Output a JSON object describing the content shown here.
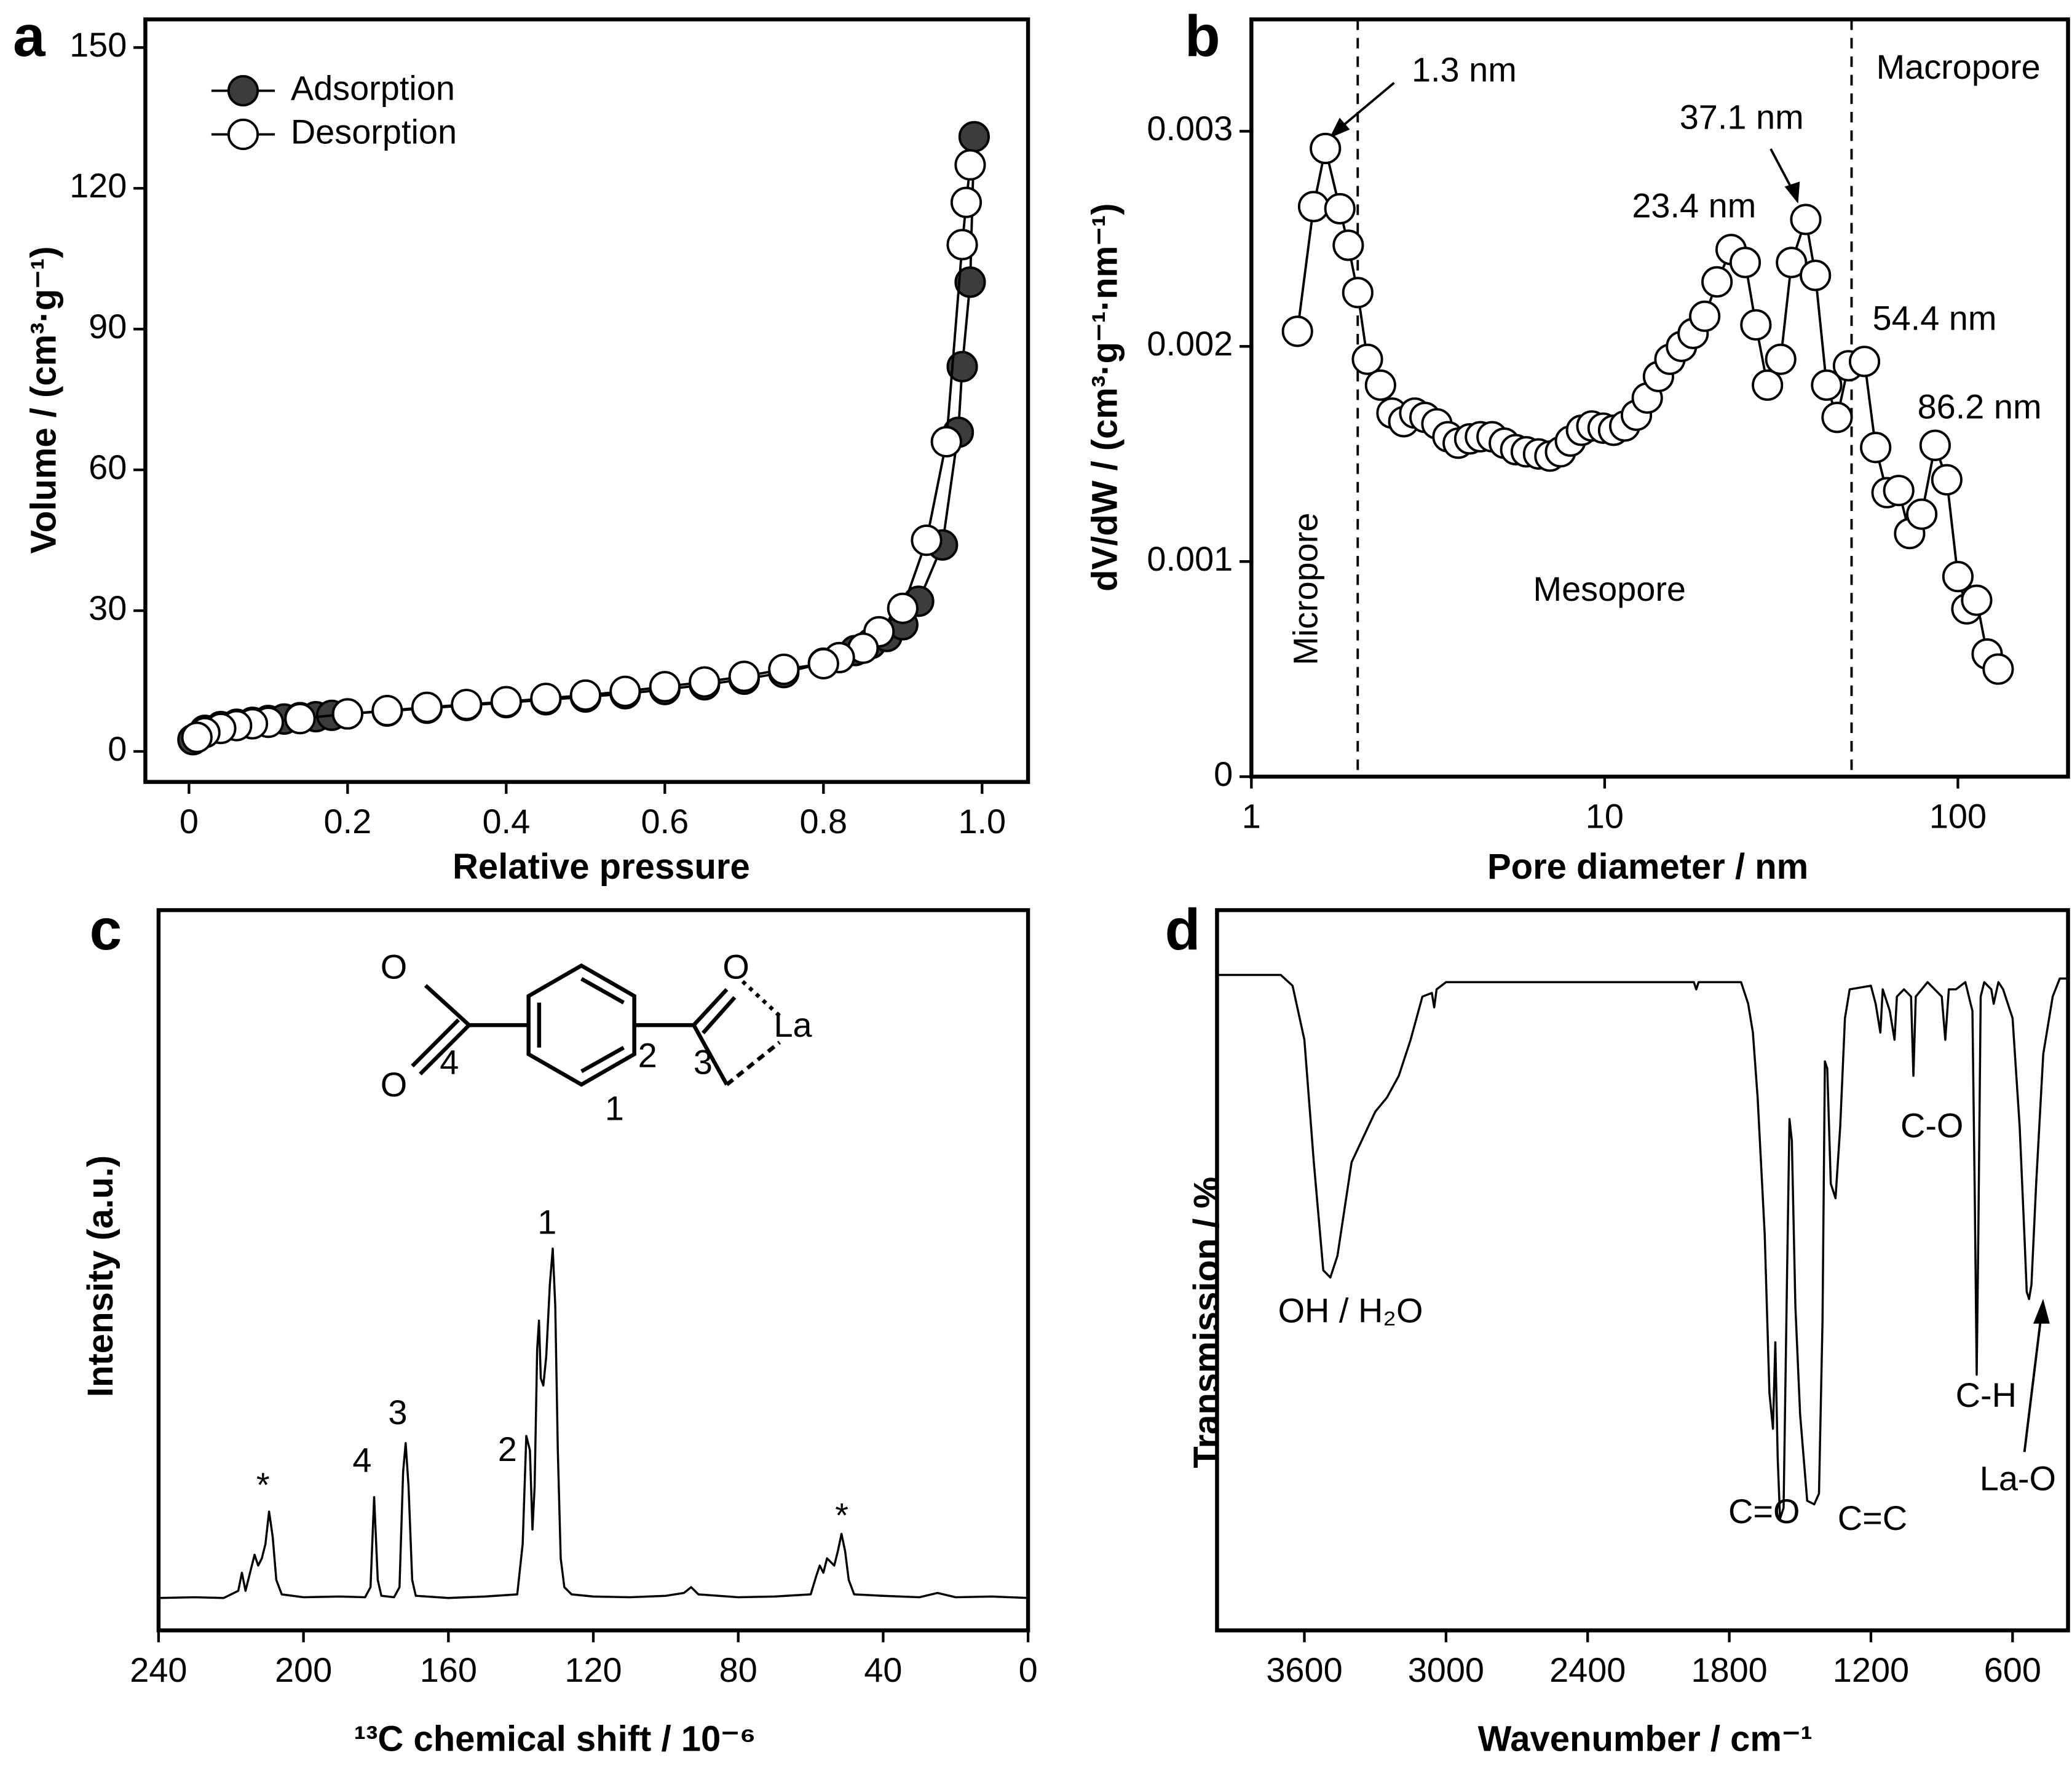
{
  "chart_data": [
    {
      "type": "line",
      "label": "a",
      "xlabel": "Relative pressure",
      "ylabel": "Volume / (cm³·g⁻¹)",
      "xlim": [
        -0.055,
        1.058
      ],
      "ylim": [
        -6.5,
        156
      ],
      "xticks": [
        0,
        0.2,
        0.4,
        0.6,
        0.8,
        {
          "value": 1,
          "label": "1.0"
        }
      ],
      "yticks": [
        0,
        30,
        60,
        90,
        120,
        150
      ],
      "legend": "upper left",
      "marker": "circle",
      "series": [
        {
          "name": "Adsorption",
          "color": "#000000",
          "marker_fill": "#3c3c3c",
          "x": [
            0.005,
            0.02,
            0.04,
            0.06,
            0.08,
            0.1,
            0.12,
            0.14,
            0.16,
            0.18,
            0.2,
            0.25,
            0.3,
            0.35,
            0.4,
            0.45,
            0.5,
            0.55,
            0.6,
            0.65,
            0.7,
            0.75,
            0.8,
            0.82,
            0.84,
            0.86,
            0.88,
            0.9,
            0.92,
            0.95,
            0.97,
            0.975,
            0.985,
            0.99
          ],
          "values": [
            2.5,
            4.5,
            5.3,
            5.8,
            6.2,
            6.6,
            6.9,
            7.2,
            7.4,
            7.7,
            8,
            8.6,
            9.2,
            9.8,
            10.4,
            11,
            11.6,
            12.3,
            13.2,
            14.2,
            15.4,
            16.8,
            18.8,
            20,
            21.5,
            23,
            24.5,
            27,
            32,
            44,
            68,
            82,
            100,
            131
          ]
        },
        {
          "name": "Desorption",
          "color": "#000000",
          "marker_fill": "#ffffff",
          "x": [
            0.985,
            0.98,
            0.975,
            0.955,
            0.93,
            0.9,
            0.87,
            0.85,
            0.82,
            0.8,
            0.75,
            0.7,
            0.65,
            0.6,
            0.55,
            0.5,
            0.45,
            0.4,
            0.35,
            0.3,
            0.25,
            0.2,
            0.14,
            0.1,
            0.08,
            0.06,
            0.04,
            0.02,
            0.01
          ],
          "values": [
            125,
            117,
            108,
            66,
            45,
            30.5,
            25.5,
            22,
            20,
            18.7,
            17.5,
            16,
            14.8,
            13.8,
            12.8,
            12,
            11.3,
            10.6,
            10,
            9.4,
            8.7,
            8,
            7,
            6.2,
            5.9,
            5.5,
            4.9,
            4,
            3
          ]
        }
      ]
    },
    {
      "type": "line",
      "label": "b",
      "xlabel": "Pore diameter / nm",
      "ylabel": "dV/dW / (cm³·g⁻¹·nm⁻¹)",
      "xlog": true,
      "xlim": [
        1,
        205
      ],
      "ylim": [
        0,
        0.00352
      ],
      "xticks": [
        1,
        10,
        100
      ],
      "yticks": [
        0,
        0.001,
        0.002,
        0.003
      ],
      "marker": "circle",
      "color": "#000000",
      "marker_fill": "#ffffff",
      "vlines": [
        2,
        50
      ],
      "regions": [
        "Micropore",
        "Mesopore",
        "Macropore"
      ],
      "annotations": [
        "1.3 nm",
        "23.4 nm",
        "37.1 nm",
        "54.4 nm",
        "86.2 nm"
      ],
      "x": [
        1.35,
        1.5,
        1.62,
        1.78,
        1.88,
        2.0,
        2.13,
        2.32,
        2.5,
        2.7,
        2.9,
        3.1,
        3.35,
        3.6,
        3.85,
        4.15,
        4.45,
        4.8,
        5.2,
        5.6,
        6.0,
        6.5,
        7.0,
        7.5,
        8.0,
        8.6,
        9.2,
        9.9,
        10.6,
        11.4,
        12.3,
        13.2,
        14.2,
        15.3,
        16.5,
        17.8,
        19.2,
        20.8,
        22.8,
        25,
        26.8,
        28.9,
        31.5,
        33.8,
        37.1,
        39.5,
        42.5,
        45.5,
        49,
        54.4,
        58.5,
        63,
        68,
        73,
        79,
        86.2,
        93,
        100,
        106,
        113,
        121,
        130
      ],
      "values": [
        0.00207,
        0.00265,
        0.00292,
        0.00264,
        0.00247,
        0.00225,
        0.00194,
        0.00182,
        0.00169,
        0.00165,
        0.00169,
        0.00167,
        0.00164,
        0.00158,
        0.00155,
        0.00157,
        0.00158,
        0.00158,
        0.00155,
        0.00152,
        0.00151,
        0.0015,
        0.00149,
        0.00151,
        0.00156,
        0.00161,
        0.00163,
        0.00162,
        0.00161,
        0.00163,
        0.00168,
        0.00176,
        0.00186,
        0.00194,
        0.002,
        0.00206,
        0.00214,
        0.0023,
        0.00245,
        0.00239,
        0.0021,
        0.00182,
        0.00194,
        0.00239,
        0.00259,
        0.00233,
        0.00182,
        0.00167,
        0.00191,
        0.00193,
        0.00153,
        0.00132,
        0.00133,
        0.00113,
        0.00122,
        0.00154,
        0.00138,
        0.00093,
        0.00078,
        0.00082,
        0.00057,
        0.0005
      ]
    },
    {
      "type": "line",
      "label": "c",
      "xlabel": "¹³C chemical shift / 10⁻⁶",
      "ylabel": "Intensity (a.u.)",
      "xlim": [
        240,
        0
      ],
      "ylim": [
        0,
        100
      ],
      "xticks": [
        240,
        200,
        160,
        120,
        80,
        40,
        0
      ],
      "color": "#000000",
      "annotations": [
        "*",
        "4",
        "3",
        "2",
        "1",
        "*"
      ],
      "structure_labels": [
        "O",
        "O",
        "4",
        "2",
        "3",
        "1",
        "O",
        "La"
      ],
      "x": [
        240,
        230,
        222,
        218,
        217,
        216,
        214.5,
        213.5,
        212.5,
        211.5,
        210.5,
        209.5,
        208.5,
        207.5,
        206,
        200,
        190,
        183,
        181.5,
        180.5,
        179.5,
        178.5,
        175,
        173.5,
        172.5,
        171.8,
        171,
        170,
        169,
        160,
        150,
        141,
        139.5,
        138.5,
        137.5,
        136.8,
        136.2,
        135.5,
        135,
        134.5,
        133.8,
        133,
        132,
        131.2,
        130.5,
        129.8,
        129,
        128,
        126,
        120,
        110,
        100,
        95,
        93,
        91,
        80,
        70,
        60,
        58.5,
        57.5,
        56.5,
        55.5,
        54.5,
        53.5,
        52.5,
        51.5,
        50.5,
        49.5,
        48,
        40,
        30,
        25,
        20,
        10,
        0
      ],
      "values": [
        4.5,
        4.6,
        4.5,
        5.5,
        8,
        5.5,
        8.5,
        10.5,
        9,
        10,
        12,
        16.5,
        13,
        7,
        5,
        4.6,
        4.7,
        4.6,
        6,
        18.5,
        7,
        4.8,
        4.6,
        6,
        22,
        26,
        20,
        7,
        4.8,
        4.5,
        4.7,
        5,
        12,
        27,
        25,
        14,
        20,
        39,
        43,
        35,
        34,
        38,
        48,
        53,
        45,
        25,
        10,
        6,
        5,
        4.7,
        4.6,
        4.8,
        5.2,
        6,
        5,
        4.6,
        4.7,
        5,
        7.5,
        9,
        8,
        10,
        9.5,
        9,
        11,
        13.4,
        11,
        7,
        5,
        4.8,
        4.6,
        5.2,
        4.6,
        4.7,
        4.5
      ]
    },
    {
      "type": "line",
      "label": "d",
      "xlabel": "Wavenumber / cm⁻¹",
      "ylabel": "Transmission / %",
      "xlim": [
        3970,
        365
      ],
      "ylim": [
        0,
        100
      ],
      "xticks": [
        3600,
        3000,
        2400,
        1800,
        1200,
        600
      ],
      "color": "#000000",
      "annotations": [
        "OH / H₂O",
        "C=O",
        "C=C",
        "C-O",
        "C-H",
        "La-O"
      ],
      "x": [
        3970,
        3700,
        3650,
        3600,
        3560,
        3520,
        3490,
        3460,
        3400,
        3300,
        3250,
        3200,
        3150,
        3100,
        3060,
        3050,
        3040,
        3000,
        2500,
        1950,
        1940,
        1930,
        1750,
        1720,
        1700,
        1680,
        1650,
        1630,
        1615,
        1605,
        1595,
        1585,
        1570,
        1555,
        1545,
        1535,
        1520,
        1500,
        1470,
        1440,
        1420,
        1405,
        1395,
        1385,
        1370,
        1350,
        1330,
        1310,
        1290,
        1200,
        1180,
        1160,
        1150,
        1120,
        1100,
        1090,
        1060,
        1030,
        1020,
        1010,
        960,
        900,
        885,
        870,
        840,
        800,
        770,
        760,
        752,
        745,
        735,
        720,
        690,
        680,
        660,
        640,
        600,
        570,
        550,
        540,
        530,
        520,
        500,
        470,
        430,
        400,
        365
      ],
      "values": [
        91,
        91,
        89.5,
        82,
        65,
        50,
        49,
        52,
        65,
        72,
        74,
        77,
        82,
        88,
        88.5,
        86.5,
        89,
        90,
        90,
        90,
        89,
        90,
        90,
        87,
        83,
        74,
        55,
        33,
        28,
        40,
        24,
        15.5,
        17,
        50,
        71,
        68,
        45,
        30,
        18,
        17.5,
        19,
        43,
        79,
        78,
        62,
        60,
        70,
        85,
        89,
        89.5,
        87,
        83,
        89,
        86,
        82,
        88,
        89,
        88,
        77,
        88,
        90,
        88,
        82,
        89,
        89,
        90,
        86,
        60,
        35.5,
        55,
        88,
        90,
        89,
        87,
        90,
        89,
        85,
        70,
        55,
        47,
        46,
        48,
        62,
        80,
        88,
        90.5,
        90.5
      ]
    }
  ]
}
